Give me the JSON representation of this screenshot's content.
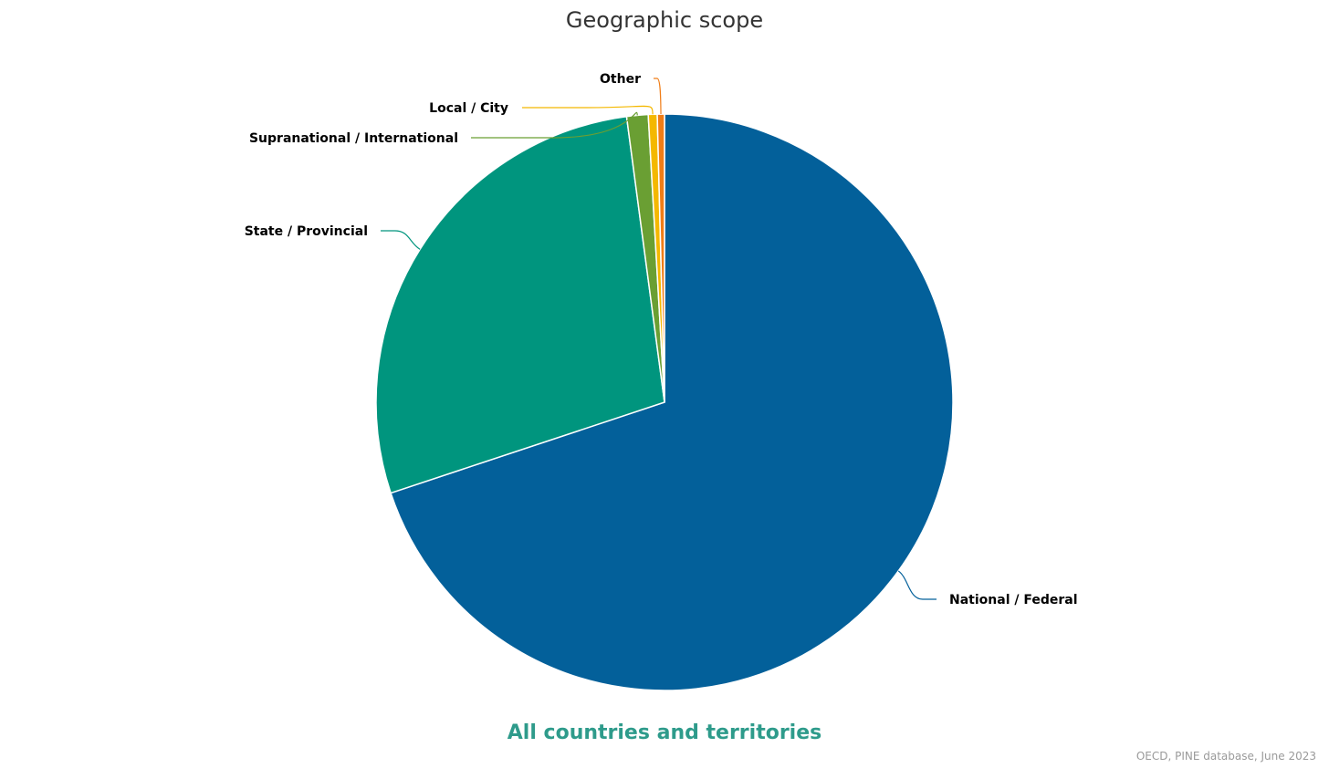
{
  "chart_data": {
    "type": "pie",
    "title": "Geographic scope",
    "subtitle": "All countries and territories",
    "source": "OECD, PINE database, June 2023",
    "slices": [
      {
        "label": "National / Federal",
        "value": 69.9,
        "color": "#03609a"
      },
      {
        "label": "State / Provincial",
        "value": 28.0,
        "color": "#00957e"
      },
      {
        "label": "Supranational / International",
        "value": 1.2,
        "color": "#6a9f33"
      },
      {
        "label": "Local / City",
        "value": 0.5,
        "color": "#f4b800"
      },
      {
        "label": "Other",
        "value": 0.4,
        "color": "#f07d17"
      }
    ],
    "subtitle_color": "#2e9b8b"
  }
}
